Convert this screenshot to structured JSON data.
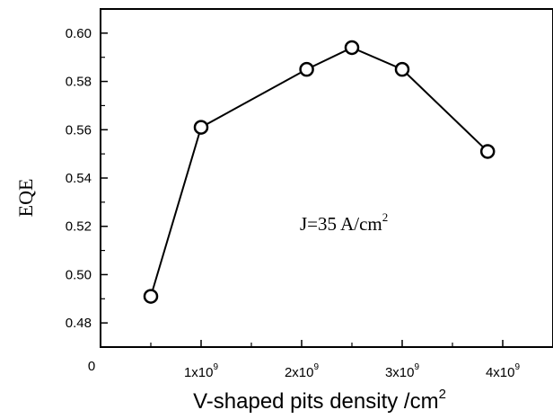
{
  "chart_data": {
    "type": "line",
    "xlabel": "V-shaped pits density /cm",
    "xlabel_sup": "2",
    "ylabel": "EQE",
    "annotation": {
      "text": "J=35 A/cm",
      "sup": "2"
    },
    "xlim": [
      0,
      4500000000
    ],
    "ylim": [
      0.47,
      0.61
    ],
    "x_ticks": [
      {
        "value": 0,
        "label": "0",
        "exp": ""
      },
      {
        "value": 1000000000,
        "label": "1x10",
        "exp": "9"
      },
      {
        "value": 2000000000,
        "label": "2x10",
        "exp": "9"
      },
      {
        "value": 3000000000,
        "label": "3x10",
        "exp": "9"
      },
      {
        "value": 4000000000,
        "label": "4x10",
        "exp": "9"
      }
    ],
    "y_ticks": [
      {
        "value": 0.48,
        "label": "0.48"
      },
      {
        "value": 0.5,
        "label": "0.50"
      },
      {
        "value": 0.52,
        "label": "0.52"
      },
      {
        "value": 0.54,
        "label": "0.54"
      },
      {
        "value": 0.56,
        "label": "0.56"
      },
      {
        "value": 0.58,
        "label": "0.58"
      },
      {
        "value": 0.6,
        "label": "0.60"
      }
    ],
    "series": [
      {
        "marker": "open-circle",
        "color": "#000000",
        "x": [
          500000000,
          1000000000,
          2050000000,
          2500000000,
          3000000000,
          3850000000
        ],
        "y": [
          0.491,
          0.561,
          0.585,
          0.594,
          0.585,
          0.551
        ]
      }
    ]
  }
}
